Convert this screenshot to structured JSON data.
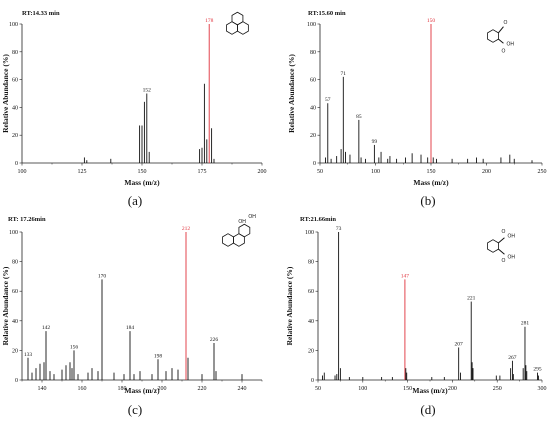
{
  "chart_data": [
    {
      "type": "bar",
      "panel_label": "(a)",
      "title": "RT:14.33 min",
      "xlabel": "Mass (m/z)",
      "ylabel": "Relative Abundance (%)",
      "xlim": [
        100,
        200
      ],
      "ylim": [
        0,
        100
      ],
      "xticks": [
        100,
        125,
        150,
        175,
        200
      ],
      "yticks": [
        0,
        20,
        40,
        60,
        80,
        100
      ],
      "highlight_color": "#e0303a",
      "molecule_icon": "phenanthrene-structure",
      "molecule_labels": [],
      "peaks": [
        {
          "x": 126,
          "y": 4
        },
        {
          "x": 127,
          "y": 2
        },
        {
          "x": 137,
          "y": 3
        },
        {
          "x": 149,
          "y": 27
        },
        {
          "x": 150,
          "y": 27
        },
        {
          "x": 151,
          "y": 44
        },
        {
          "x": 152,
          "y": 50
        },
        {
          "x": 153,
          "y": 8
        },
        {
          "x": 174,
          "y": 10
        },
        {
          "x": 175,
          "y": 11
        },
        {
          "x": 176,
          "y": 57
        },
        {
          "x": 177,
          "y": 17
        },
        {
          "x": 178,
          "y": 100
        },
        {
          "x": 179,
          "y": 25
        },
        {
          "x": 180,
          "y": 3
        }
      ],
      "peak_labels": [
        {
          "x": 152,
          "y": 50,
          "text": "152",
          "highlight": false
        },
        {
          "x": 178,
          "y": 100,
          "text": "178",
          "highlight": true
        }
      ]
    },
    {
      "type": "bar",
      "panel_label": "(b)",
      "title": "RT:15.60 min",
      "xlabel": "Mass (m/z)",
      "ylabel": "Relative Abundance (%)",
      "xlim": [
        50,
        250
      ],
      "ylim": [
        0,
        100
      ],
      "xticks": [
        50,
        100,
        150,
        200,
        250
      ],
      "yticks": [
        0,
        20,
        40,
        60,
        80,
        100
      ],
      "highlight_color": "#e0303a",
      "molecule_icon": "formylbenzoic-acid-structure",
      "molecule_labels": [
        "OH",
        "O",
        "O"
      ],
      "peaks": [
        {
          "x": 55,
          "y": 4
        },
        {
          "x": 57,
          "y": 43
        },
        {
          "x": 60,
          "y": 3
        },
        {
          "x": 65,
          "y": 5
        },
        {
          "x": 69,
          "y": 10
        },
        {
          "x": 71,
          "y": 62
        },
        {
          "x": 73,
          "y": 8
        },
        {
          "x": 77,
          "y": 6
        },
        {
          "x": 85,
          "y": 31
        },
        {
          "x": 87,
          "y": 4
        },
        {
          "x": 91,
          "y": 3
        },
        {
          "x": 99,
          "y": 13
        },
        {
          "x": 103,
          "y": 4
        },
        {
          "x": 105,
          "y": 8
        },
        {
          "x": 111,
          "y": 3
        },
        {
          "x": 113,
          "y": 5
        },
        {
          "x": 119,
          "y": 3
        },
        {
          "x": 127,
          "y": 4
        },
        {
          "x": 133,
          "y": 7
        },
        {
          "x": 141,
          "y": 6
        },
        {
          "x": 147,
          "y": 4
        },
        {
          "x": 150,
          "y": 100
        },
        {
          "x": 152,
          "y": 4
        },
        {
          "x": 155,
          "y": 3
        },
        {
          "x": 169,
          "y": 3
        },
        {
          "x": 183,
          "y": 3
        },
        {
          "x": 191,
          "y": 4
        },
        {
          "x": 197,
          "y": 3
        },
        {
          "x": 213,
          "y": 4
        },
        {
          "x": 221,
          "y": 6
        },
        {
          "x": 225,
          "y": 3
        },
        {
          "x": 241,
          "y": 2
        }
      ],
      "peak_labels": [
        {
          "x": 57,
          "y": 43,
          "text": "57",
          "highlight": false
        },
        {
          "x": 71,
          "y": 62,
          "text": "71",
          "highlight": false
        },
        {
          "x": 85,
          "y": 31,
          "text": "85",
          "highlight": false
        },
        {
          "x": 99,
          "y": 13,
          "text": "99",
          "highlight": false
        },
        {
          "x": 150,
          "y": 100,
          "text": "150",
          "highlight": true
        }
      ]
    },
    {
      "type": "bar",
      "panel_label": "(c)",
      "title": "RT: 17.26min",
      "xlabel": "Mass (m/z)",
      "ylabel": "Relative Abundance (%)",
      "xlim": [
        130,
        250
      ],
      "ylim": [
        0,
        100
      ],
      "xticks": [
        140,
        160,
        180,
        200,
        220,
        240
      ],
      "yticks": [
        0,
        20,
        40,
        60,
        80,
        100
      ],
      "highlight_color": "#e0303a",
      "molecule_icon": "dihydroxy-dihydrophenanthrene-structure",
      "molecule_labels": [
        "OH",
        "OH"
      ],
      "peaks": [
        {
          "x": 133,
          "y": 15
        },
        {
          "x": 135,
          "y": 5
        },
        {
          "x": 137,
          "y": 8
        },
        {
          "x": 139,
          "y": 11
        },
        {
          "x": 141,
          "y": 12
        },
        {
          "x": 142,
          "y": 33
        },
        {
          "x": 144,
          "y": 6
        },
        {
          "x": 146,
          "y": 4
        },
        {
          "x": 150,
          "y": 7
        },
        {
          "x": 152,
          "y": 10
        },
        {
          "x": 154,
          "y": 12
        },
        {
          "x": 155,
          "y": 8
        },
        {
          "x": 156,
          "y": 20
        },
        {
          "x": 158,
          "y": 4
        },
        {
          "x": 163,
          "y": 5
        },
        {
          "x": 165,
          "y": 8
        },
        {
          "x": 168,
          "y": 6
        },
        {
          "x": 170,
          "y": 68
        },
        {
          "x": 176,
          "y": 5
        },
        {
          "x": 181,
          "y": 4
        },
        {
          "x": 184,
          "y": 33
        },
        {
          "x": 186,
          "y": 4
        },
        {
          "x": 189,
          "y": 6
        },
        {
          "x": 195,
          "y": 4
        },
        {
          "x": 198,
          "y": 14
        },
        {
          "x": 202,
          "y": 6
        },
        {
          "x": 205,
          "y": 8
        },
        {
          "x": 208,
          "y": 7
        },
        {
          "x": 212,
          "y": 100
        },
        {
          "x": 213,
          "y": 15
        },
        {
          "x": 220,
          "y": 4
        },
        {
          "x": 226,
          "y": 25
        },
        {
          "x": 227,
          "y": 6
        },
        {
          "x": 240,
          "y": 4
        }
      ],
      "peak_labels": [
        {
          "x": 133,
          "y": 15,
          "text": "133",
          "highlight": false
        },
        {
          "x": 142,
          "y": 33,
          "text": "142",
          "highlight": false
        },
        {
          "x": 156,
          "y": 20,
          "text": "156",
          "highlight": false
        },
        {
          "x": 170,
          "y": 68,
          "text": "170",
          "highlight": false
        },
        {
          "x": 184,
          "y": 33,
          "text": "184",
          "highlight": false
        },
        {
          "x": 198,
          "y": 14,
          "text": "198",
          "highlight": false
        },
        {
          "x": 212,
          "y": 100,
          "text": "212",
          "highlight": true
        },
        {
          "x": 226,
          "y": 25,
          "text": "226",
          "highlight": false
        }
      ]
    },
    {
      "type": "bar",
      "panel_label": "(d)",
      "title": "RT:21.66min",
      "xlabel": "Mass (m/z)",
      "ylabel": "Relative Abundance (%)",
      "xlim": [
        50,
        300
      ],
      "ylim": [
        0,
        100
      ],
      "xticks": [
        50,
        100,
        150,
        200,
        250,
        300
      ],
      "yticks": [
        0,
        20,
        40,
        60,
        80,
        100
      ],
      "highlight_color": "#e0303a",
      "molecule_icon": "phthalic-acid-structure",
      "molecule_labels": [
        "OH",
        "OH",
        "O",
        "O"
      ],
      "peaks": [
        {
          "x": 55,
          "y": 3
        },
        {
          "x": 57,
          "y": 5
        },
        {
          "x": 69,
          "y": 3
        },
        {
          "x": 71,
          "y": 4
        },
        {
          "x": 73,
          "y": 100
        },
        {
          "x": 75,
          "y": 8
        },
        {
          "x": 85,
          "y": 2
        },
        {
          "x": 100,
          "y": 2
        },
        {
          "x": 121,
          "y": 2
        },
        {
          "x": 133,
          "y": 2
        },
        {
          "x": 147,
          "y": 68
        },
        {
          "x": 148,
          "y": 8
        },
        {
          "x": 149,
          "y": 5
        },
        {
          "x": 177,
          "y": 2
        },
        {
          "x": 191,
          "y": 2
        },
        {
          "x": 207,
          "y": 22
        },
        {
          "x": 209,
          "y": 5
        },
        {
          "x": 221,
          "y": 53
        },
        {
          "x": 222,
          "y": 12
        },
        {
          "x": 223,
          "y": 8
        },
        {
          "x": 249,
          "y": 3
        },
        {
          "x": 253,
          "y": 3
        },
        {
          "x": 265,
          "y": 8
        },
        {
          "x": 267,
          "y": 13
        },
        {
          "x": 268,
          "y": 4
        },
        {
          "x": 279,
          "y": 8
        },
        {
          "x": 281,
          "y": 36
        },
        {
          "x": 282,
          "y": 10
        },
        {
          "x": 283,
          "y": 6
        },
        {
          "x": 295,
          "y": 5
        },
        {
          "x": 296,
          "y": 3
        }
      ],
      "peak_labels": [
        {
          "x": 73,
          "y": 100,
          "text": "73",
          "highlight": false
        },
        {
          "x": 147,
          "y": 68,
          "text": "147",
          "highlight": true
        },
        {
          "x": 207,
          "y": 22,
          "text": "207",
          "highlight": false
        },
        {
          "x": 221,
          "y": 53,
          "text": "221",
          "highlight": false
        },
        {
          "x": 267,
          "y": 13,
          "text": "267",
          "highlight": false
        },
        {
          "x": 281,
          "y": 36,
          "text": "281",
          "highlight": false
        },
        {
          "x": 295,
          "y": 5,
          "text": "295",
          "highlight": false
        }
      ]
    }
  ]
}
